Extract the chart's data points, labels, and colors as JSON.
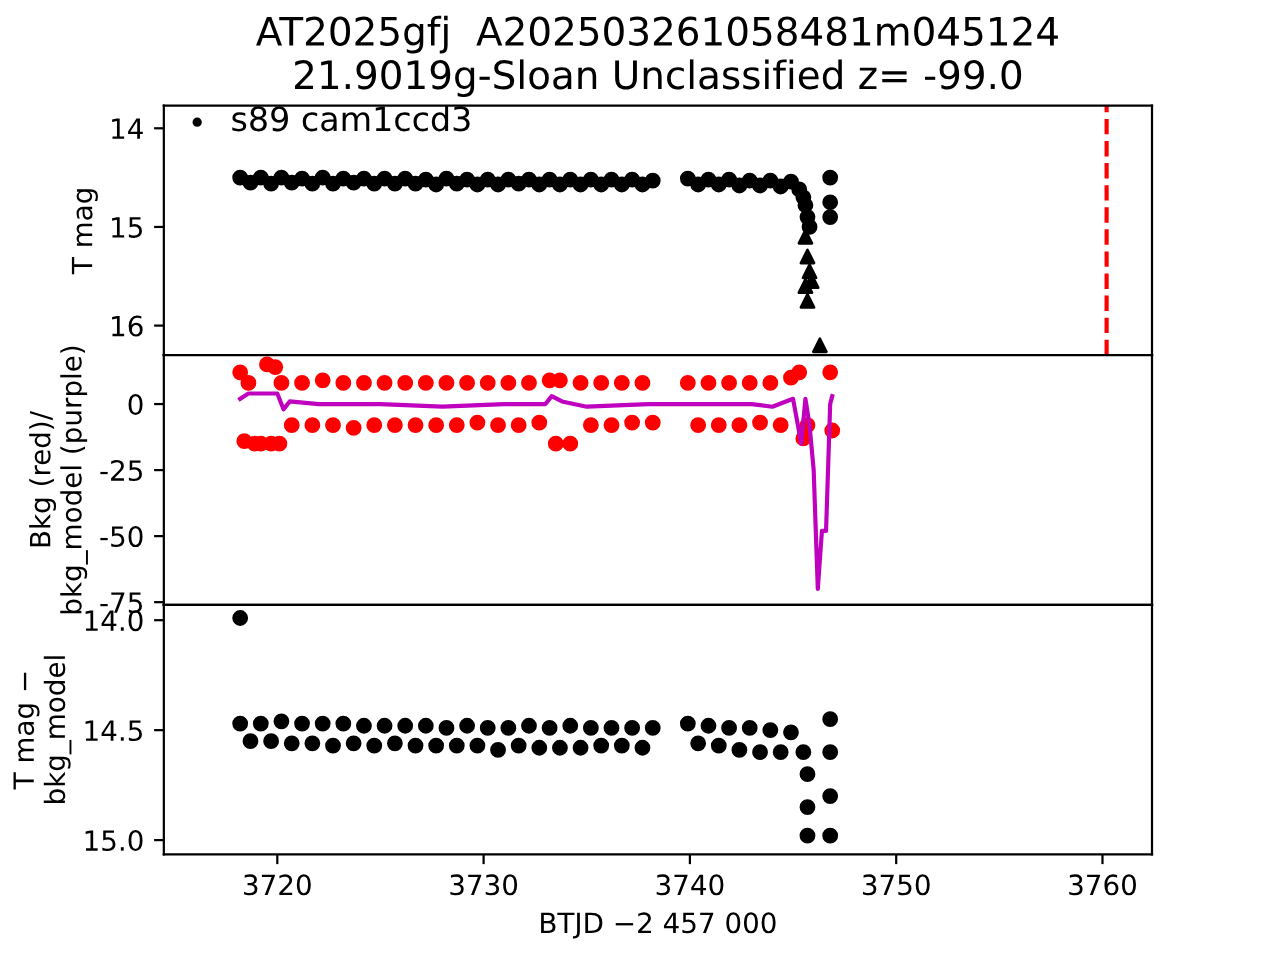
{
  "chart_data": [
    {
      "type": "scatter",
      "title": "AT2025gfj  A202503261058481m045124\n21.9019g-Sloan Unclassified z= -99.0",
      "ylabel": "T mag",
      "xlim": [
        3714.5,
        3762.4
      ],
      "xticks": [
        3720,
        3730,
        3740,
        3750,
        3760
      ],
      "ylim": [
        16.3,
        13.77
      ],
      "yticks": [
        14,
        15,
        16
      ],
      "tick_labels": "y",
      "legend": "top left",
      "grid": false,
      "ref_lines": [
        {
          "axis": "x",
          "value": 3760.2,
          "color": "#ff0000",
          "line_style": "dashed"
        }
      ],
      "series": [
        {
          "name": "s89 cam1ccd3",
          "color": "#000000",
          "marker": "circle",
          "x": [
            3718.2,
            3718.7,
            3719.2,
            3719.7,
            3720.2,
            3720.7,
            3721.2,
            3721.7,
            3722.2,
            3722.7,
            3723.2,
            3723.7,
            3724.2,
            3724.7,
            3725.2,
            3725.7,
            3726.2,
            3726.7,
            3727.2,
            3727.7,
            3728.2,
            3728.7,
            3729.2,
            3729.7,
            3730.2,
            3730.7,
            3731.2,
            3731.7,
            3732.2,
            3732.7,
            3733.2,
            3733.7,
            3734.2,
            3734.7,
            3735.2,
            3735.7,
            3736.2,
            3736.7,
            3737.2,
            3737.7,
            3738.2,
            3739.9,
            3740.4,
            3740.9,
            3741.4,
            3741.9,
            3742.4,
            3742.9,
            3743.4,
            3743.9,
            3744.4,
            3744.9,
            3745.3,
            3745.5,
            3745.6,
            3745.7,
            3745.8,
            3746.8,
            3746.8,
            3746.8
          ],
          "values": [
            14.5,
            14.55,
            14.5,
            14.56,
            14.5,
            14.55,
            14.51,
            14.56,
            14.5,
            14.56,
            14.51,
            14.55,
            14.51,
            14.56,
            14.51,
            14.56,
            14.51,
            14.56,
            14.52,
            14.57,
            14.51,
            14.56,
            14.52,
            14.57,
            14.52,
            14.57,
            14.52,
            14.56,
            14.52,
            14.57,
            14.52,
            14.57,
            14.52,
            14.57,
            14.52,
            14.57,
            14.52,
            14.57,
            14.52,
            14.57,
            14.53,
            14.51,
            14.57,
            14.52,
            14.57,
            14.52,
            14.58,
            14.53,
            14.58,
            14.53,
            14.59,
            14.54,
            14.62,
            14.7,
            14.78,
            14.9,
            15.0,
            14.5,
            14.75,
            14.9
          ]
        },
        {
          "color": "#000000",
          "marker": "triangle",
          "x": [
            3745.6,
            3745.7,
            3745.8,
            3745.6,
            3745.9,
            3745.7,
            3746.3
          ],
          "values": [
            15.1,
            15.3,
            15.45,
            15.6,
            15.55,
            15.75,
            16.2
          ]
        }
      ]
    },
    {
      "type": "scatter",
      "ylabel": "Bkg (red)/\nbkg_model (purple)",
      "xlim": [
        3714.5,
        3762.4
      ],
      "xticks": [
        3720,
        3730,
        3740,
        3750,
        3760
      ],
      "ylim": [
        -76,
        18.5
      ],
      "yticks": [
        0,
        -25,
        -50,
        -75
      ],
      "tick_labels": "y",
      "grid": false,
      "series": [
        {
          "color": "#ff0000",
          "marker": "circle",
          "x": [
            3718.2,
            3718.4,
            3718.6,
            3718.9,
            3719.2,
            3719.5,
            3719.7,
            3719.9,
            3720.1,
            3720.2,
            3720.7,
            3721.2,
            3721.7,
            3722.2,
            3722.7,
            3723.2,
            3723.7,
            3724.2,
            3724.7,
            3725.2,
            3725.7,
            3726.2,
            3726.7,
            3727.2,
            3727.7,
            3728.2,
            3728.7,
            3729.2,
            3729.7,
            3730.2,
            3730.7,
            3731.2,
            3731.7,
            3732.2,
            3732.7,
            3733.2,
            3733.5,
            3733.7,
            3734.2,
            3734.7,
            3735.2,
            3735.7,
            3736.2,
            3736.7,
            3737.2,
            3737.7,
            3738.2,
            3739.9,
            3740.4,
            3740.9,
            3741.4,
            3741.9,
            3742.4,
            3742.9,
            3743.4,
            3743.9,
            3744.4,
            3744.9,
            3745.3,
            3745.5,
            3745.7,
            3746.8,
            3746.9
          ],
          "values": [
            12,
            -14,
            8,
            -15,
            -15,
            15,
            -15,
            14,
            -15,
            8,
            -8,
            8,
            -8,
            9,
            -8,
            8,
            -9,
            8,
            -8,
            8,
            -8,
            8,
            -8,
            8,
            -8,
            8,
            -8,
            8,
            -7,
            8,
            -8,
            8,
            -8,
            8,
            -7,
            9,
            -15,
            9,
            -15,
            8,
            -8,
            8,
            -8,
            8,
            -7,
            8,
            -7,
            8,
            -8,
            8,
            -8,
            8,
            -8,
            8,
            -7,
            8,
            -8,
            10,
            12,
            -13,
            -8,
            12,
            -10
          ]
        },
        {
          "type": "line",
          "color": "#bf00bf",
          "marker": "none",
          "x": [
            3718.2,
            3718.6,
            3719.5,
            3720.0,
            3720.3,
            3720.6,
            3722,
            3725,
            3728,
            3731,
            3733,
            3733.3,
            3733.8,
            3735,
            3738,
            3740,
            3743,
            3744,
            3745,
            3745.4,
            3745.6,
            3745.8,
            3746.0,
            3746.2,
            3746.4,
            3746.6,
            3746.8,
            3746.9
          ],
          "values": [
            2,
            4,
            4,
            4,
            -2,
            1,
            0,
            0,
            -1,
            0,
            0,
            3,
            1,
            -1,
            0,
            0,
            0,
            -1,
            2,
            -15,
            2,
            -8,
            -25,
            -70,
            -48,
            -48,
            0,
            3
          ]
        }
      ]
    },
    {
      "type": "scatter",
      "ylabel": "T mag −\nbkg_model",
      "xlabel": "BTJD −2 457 000",
      "xlim": [
        3714.5,
        3762.4
      ],
      "xticks": [
        3720,
        3730,
        3740,
        3750,
        3760
      ],
      "ylim": [
        15.065,
        13.93
      ],
      "yticks": [
        {
          "value": 14.0,
          "label": "14.0"
        },
        14.5,
        {
          "value": 15.0,
          "label": "15.0"
        }
      ],
      "grid": false,
      "series": [
        {
          "color": "#000000",
          "marker": "circle",
          "x": [
            3718.2,
            3718.2,
            3718.7,
            3719.2,
            3719.7,
            3720.2,
            3720.7,
            3721.2,
            3721.7,
            3722.2,
            3722.7,
            3723.2,
            3723.7,
            3724.2,
            3724.7,
            3725.2,
            3725.7,
            3726.2,
            3726.7,
            3727.2,
            3727.7,
            3728.2,
            3728.7,
            3729.2,
            3729.7,
            3730.2,
            3730.7,
            3731.2,
            3731.7,
            3732.2,
            3732.7,
            3733.2,
            3733.7,
            3734.2,
            3734.7,
            3735.2,
            3735.7,
            3736.2,
            3736.7,
            3737.2,
            3737.7,
            3738.2,
            3739.9,
            3740.4,
            3740.9,
            3741.4,
            3741.9,
            3742.4,
            3742.9,
            3743.4,
            3743.9,
            3744.4,
            3744.9,
            3745.5,
            3745.7,
            3745.7,
            3745.7,
            3746.8,
            3746.8,
            3746.8,
            3746.8
          ],
          "values": [
            13.99,
            14.47,
            14.55,
            14.47,
            14.55,
            14.46,
            14.56,
            14.47,
            14.56,
            14.47,
            14.57,
            14.47,
            14.56,
            14.48,
            14.57,
            14.48,
            14.56,
            14.48,
            14.57,
            14.48,
            14.57,
            14.49,
            14.57,
            14.48,
            14.57,
            14.49,
            14.59,
            14.49,
            14.57,
            14.48,
            14.58,
            14.49,
            14.58,
            14.48,
            14.58,
            14.49,
            14.57,
            14.49,
            14.57,
            14.49,
            14.58,
            14.49,
            14.47,
            14.56,
            14.48,
            14.57,
            14.49,
            14.59,
            14.49,
            14.6,
            14.5,
            14.6,
            14.51,
            14.6,
            14.7,
            14.85,
            14.98,
            14.45,
            14.6,
            14.8,
            14.98
          ]
        }
      ]
    }
  ]
}
